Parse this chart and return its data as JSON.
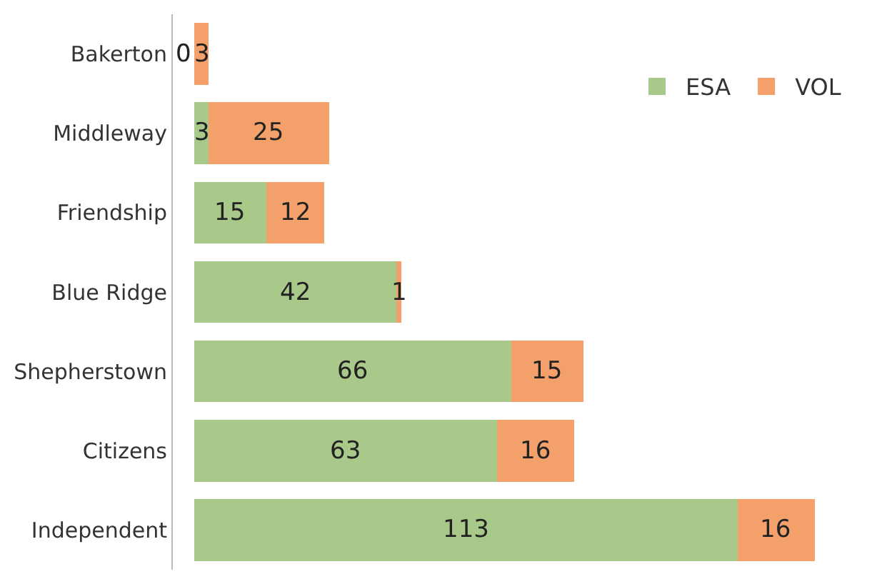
{
  "chart_data": {
    "type": "bar",
    "orientation": "horizontal",
    "stacked": true,
    "data_labels": true,
    "legend": "top right",
    "categories": [
      "Bakerton",
      "Middleway",
      "Friendship",
      "Blue Ridge",
      "Shepherstown",
      "Citizens",
      "Independent"
    ],
    "series": [
      {
        "name": "ESA",
        "color": "#a9c98a",
        "values": [
          0,
          3,
          15,
          42,
          66,
          63,
          113
        ]
      },
      {
        "name": "VOL",
        "color": "#f4a06a",
        "values": [
          3,
          25,
          12,
          1,
          15,
          16,
          16
        ]
      }
    ]
  }
}
